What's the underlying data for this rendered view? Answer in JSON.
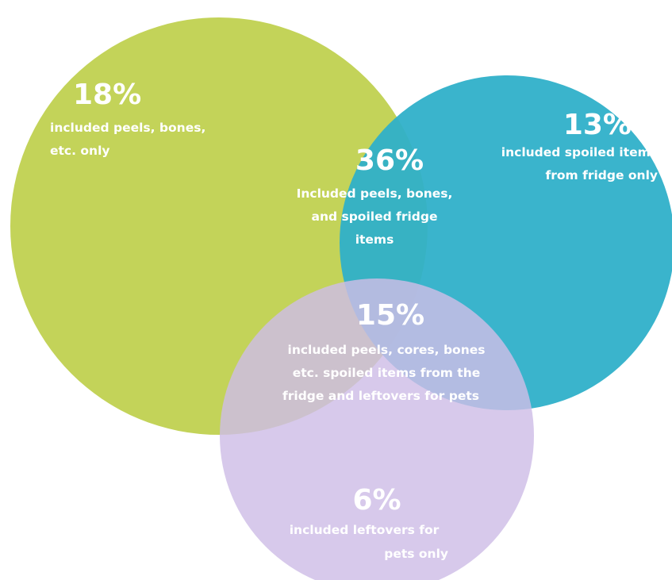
{
  "colors": {
    "green": "#c3d359",
    "teal": "#2fb0c9",
    "lavender": "#cebde6",
    "text": "#ffffff"
  },
  "regions": {
    "peels_only": {
      "percent": "18%",
      "lines": [
        "included peels, bones,",
        "etc. only"
      ]
    },
    "fridge_only": {
      "percent": "13%",
      "lines": [
        "included spoiled items",
        "from fridge only"
      ]
    },
    "peels_and_fridge": {
      "percent": "36%",
      "lines": [
        "Included peels, bones,",
        "and spoiled fridge",
        "items"
      ]
    },
    "all_three": {
      "percent": "15%",
      "lines": [
        "included peels, cores, bones",
        "etc. spoiled items from the",
        "fridge and leftovers for pets"
      ]
    },
    "pets_only": {
      "percent": "6%",
      "lines": [
        "included leftovers for",
        "pets only"
      ]
    }
  }
}
